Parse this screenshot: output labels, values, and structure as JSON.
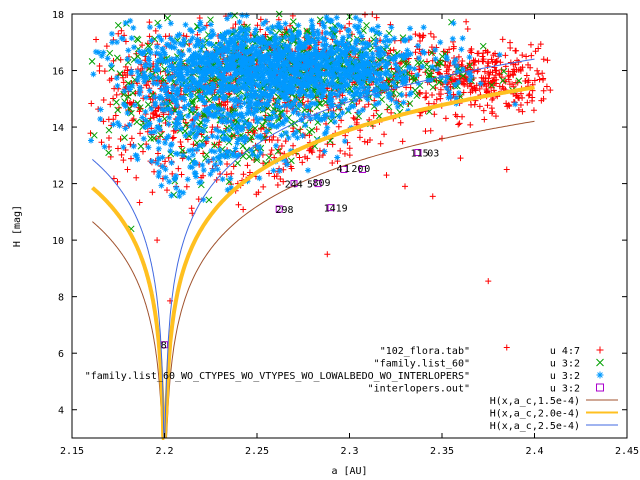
{
  "chart_data": {
    "type": "scatter",
    "xlabel": "a [AU]",
    "ylabel": "H [mag]",
    "xlim": [
      2.15,
      2.45
    ],
    "ylim": [
      3,
      18
    ],
    "xticks": [
      2.15,
      2.2,
      2.25,
      2.3,
      2.35,
      2.4,
      2.45
    ],
    "xtick_labels": [
      "2.15",
      "2.2",
      "2.25",
      "2.3",
      "2.35",
      "2.4",
      "2.45"
    ],
    "yticks": [
      4,
      6,
      8,
      10,
      12,
      14,
      16,
      18
    ],
    "ytick_labels": [
      "4",
      "6",
      "8",
      "10",
      "12",
      "14",
      "16",
      "18"
    ],
    "legend_position": "bottom-right",
    "series": [
      {
        "name": "\"102_flora.tab\"",
        "using": "u 4:7",
        "marker": "plus",
        "color": "#ff0000",
        "clusters": [
          {
            "cx": 2.272,
            "cy": 15.9,
            "sx": 0.045,
            "sy": 0.9,
            "n": 700
          },
          {
            "cx": 2.37,
            "cy": 15.7,
            "sx": 0.02,
            "sy": 0.6,
            "n": 320
          },
          {
            "cx": 2.2,
            "cy": 15.0,
            "sx": 0.02,
            "sy": 1.0,
            "n": 220
          },
          {
            "cx": 2.26,
            "cy": 13.0,
            "sx": 0.05,
            "sy": 0.9,
            "n": 200
          }
        ],
        "points": [
          [
            2.163,
            17.1
          ],
          [
            2.175,
            17.3
          ],
          [
            2.405,
            16.4
          ],
          [
            2.39,
            15.1
          ],
          [
            2.35,
            13.6
          ],
          [
            2.36,
            12.9
          ],
          [
            2.385,
            12.5
          ],
          [
            2.375,
            8.55
          ],
          [
            2.385,
            6.2
          ],
          [
            2.288,
            9.5
          ],
          [
            2.203,
            7.85
          ],
          [
            2.196,
            10.0
          ],
          [
            2.215,
            10.95
          ],
          [
            2.33,
            11.9
          ],
          [
            2.345,
            11.55
          ],
          [
            2.32,
            12.3
          ],
          [
            2.24,
            11.25
          ],
          [
            2.18,
            12.5
          ],
          [
            2.17,
            13.3
          ],
          [
            2.167,
            14.2
          ]
        ]
      },
      {
        "name": "\"family.list_60\"",
        "using": "u 3:2",
        "marker": "cross",
        "color": "#00a000",
        "clusters": [
          {
            "cx": 2.265,
            "cy": 16.0,
            "sx": 0.045,
            "sy": 0.85,
            "n": 600
          },
          {
            "cx": 2.23,
            "cy": 13.8,
            "sx": 0.03,
            "sy": 0.8,
            "n": 120
          }
        ],
        "points": [
          [
            2.175,
            17.6
          ],
          [
            2.262,
            18.0
          ],
          [
            2.3,
            17.9
          ],
          [
            2.182,
            10.4
          ],
          [
            2.205,
            11.6
          ]
        ]
      },
      {
        "name": "\"family.list_60_WO_CTYPES_WO_VTYPES_WO_LOWALBEDO_WO_INTERLOPERS\"",
        "using": "u 3:2",
        "marker": "star",
        "color": "#0099ff",
        "clusters": [
          {
            "cx": 2.262,
            "cy": 16.1,
            "sx": 0.04,
            "sy": 0.75,
            "n": 1500
          },
          {
            "cx": 2.23,
            "cy": 14.2,
            "sx": 0.03,
            "sy": 0.8,
            "n": 250
          },
          {
            "cx": 2.215,
            "cy": 12.6,
            "sx": 0.015,
            "sy": 0.5,
            "n": 60
          }
        ],
        "points": []
      },
      {
        "name": "\"interlopers.out\"",
        "using": "u 3:2",
        "marker": "square",
        "color": "#aa00cc",
        "clusters": [],
        "points": [
          [
            2.2,
            6.3
          ],
          [
            2.262,
            11.1
          ],
          [
            2.29,
            11.15
          ],
          [
            2.27,
            12.0
          ],
          [
            2.283,
            12.0
          ],
          [
            2.297,
            12.5
          ],
          [
            2.307,
            12.5
          ],
          [
            2.337,
            13.1
          ]
        ]
      }
    ],
    "curves": [
      {
        "name": "H(x,a_c,1.5e-4)",
        "color": "#a0522d",
        "width": 1,
        "a_c": 2.2,
        "hmin": 2.5,
        "top": 4.3
      },
      {
        "name": "H(x,a_c,2.0e-4)",
        "color": "#ffc020",
        "width": 4,
        "a_c": 2.2,
        "hmin": 2.5,
        "top": 3.7
      },
      {
        "name": "H(x,a_c,2.5e-4)",
        "color": "#4169e1",
        "width": 1,
        "a_c": 2.2,
        "hmin": 2.5,
        "top": 3.2
      }
    ],
    "annotations": [
      {
        "text": "8",
        "x": 2.198,
        "y": 6.3
      },
      {
        "text": "298",
        "x": 2.26,
        "y": 11.1
      },
      {
        "text": "1419",
        "x": 2.286,
        "y": 11.15
      },
      {
        "text": "244",
        "x": 2.265,
        "y": 12.0
      },
      {
        "text": "5",
        "x": 2.277,
        "y": 12.0
      },
      {
        "text": "809",
        "x": 2.28,
        "y": 12.05
      },
      {
        "text": "4",
        "x": 2.293,
        "y": 12.55
      },
      {
        "text": "1",
        "x": 2.297,
        "y": 12.55
      },
      {
        "text": "20",
        "x": 2.301,
        "y": 12.55
      },
      {
        "text": "0",
        "x": 2.308,
        "y": 12.55
      },
      {
        "text": "115",
        "x": 2.333,
        "y": 13.1
      },
      {
        "text": "03",
        "x": 2.342,
        "y": 13.1
      }
    ]
  }
}
